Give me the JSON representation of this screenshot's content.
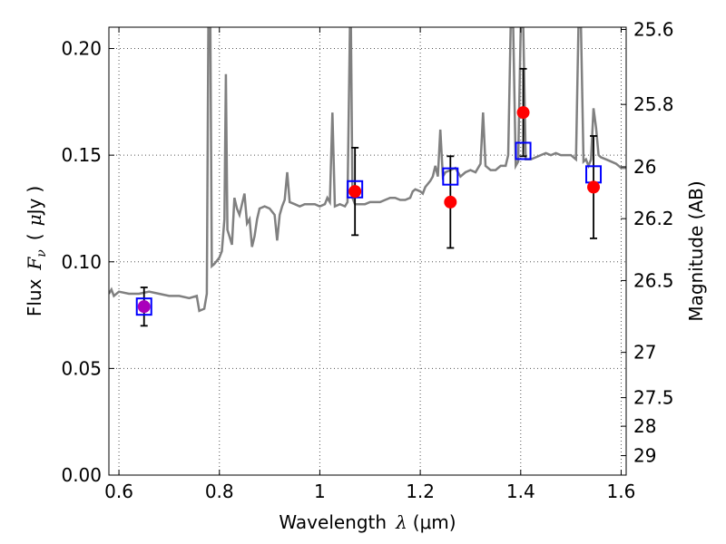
{
  "chart_data": {
    "type": "scatter",
    "xlabel": "Wavelength",
    "xlabel_symbol": "λ",
    "xlabel_unit": "(μm)",
    "ylabel": "Flux",
    "ylabel_symbol": "F",
    "ylabel_subscript": "ν",
    "ylabel_unit_open": "(",
    "ylabel_unit_symbol": "μ",
    "ylabel_unit_rest": "Jy",
    "ylabel_unit_close": ")",
    "y2label": "Magnitude (AB)",
    "xlim": [
      0.58,
      1.61
    ],
    "ylim": [
      0.0,
      0.21
    ],
    "grid": true,
    "x_ticks": [
      {
        "value": 0.6,
        "label": "0.6"
      },
      {
        "value": 0.8,
        "label": "0.8"
      },
      {
        "value": 1.0,
        "label": "1"
      },
      {
        "value": 1.2,
        "label": "1.2"
      },
      {
        "value": 1.4,
        "label": "1.4"
      },
      {
        "value": 1.6,
        "label": "1.6"
      }
    ],
    "y_ticks": [
      {
        "value": 0.0,
        "label": "0.00"
      },
      {
        "value": 0.05,
        "label": "0.05"
      },
      {
        "value": 0.1,
        "label": "0.10"
      },
      {
        "value": 0.15,
        "label": "0.15"
      },
      {
        "value": 0.2,
        "label": "0.20"
      }
    ],
    "y2_ticks": [
      {
        "mag": 25.6,
        "label": "25.6"
      },
      {
        "mag": 25.8,
        "label": "25.8"
      },
      {
        "mag": 26.0,
        "label": "26"
      },
      {
        "mag": 26.2,
        "label": "26.2"
      },
      {
        "mag": 26.5,
        "label": "26.5"
      },
      {
        "mag": 27.0,
        "label": "27"
      },
      {
        "mag": 27.5,
        "label": "27.5"
      },
      {
        "mag": 28.0,
        "label": "28"
      },
      {
        "mag": 29.0,
        "label": "29"
      }
    ],
    "series": [
      {
        "kind": "line",
        "color": "#808080",
        "points": [
          [
            0.58,
            0.085
          ],
          [
            0.585,
            0.087
          ],
          [
            0.59,
            0.084
          ],
          [
            0.6,
            0.086
          ],
          [
            0.62,
            0.085
          ],
          [
            0.64,
            0.085
          ],
          [
            0.66,
            0.086
          ],
          [
            0.68,
            0.085
          ],
          [
            0.7,
            0.084
          ],
          [
            0.72,
            0.084
          ],
          [
            0.74,
            0.083
          ],
          [
            0.755,
            0.084
          ],
          [
            0.76,
            0.077
          ],
          [
            0.77,
            0.078
          ],
          [
            0.775,
            0.085
          ],
          [
            0.778,
            0.21
          ],
          [
            0.782,
            0.21
          ],
          [
            0.785,
            0.098
          ],
          [
            0.79,
            0.099
          ],
          [
            0.8,
            0.102
          ],
          [
            0.805,
            0.105
          ],
          [
            0.81,
            0.12
          ],
          [
            0.813,
            0.188
          ],
          [
            0.816,
            0.115
          ],
          [
            0.82,
            0.112
          ],
          [
            0.825,
            0.108
          ],
          [
            0.83,
            0.13
          ],
          [
            0.835,
            0.125
          ],
          [
            0.84,
            0.122
          ],
          [
            0.85,
            0.132
          ],
          [
            0.855,
            0.118
          ],
          [
            0.86,
            0.12
          ],
          [
            0.865,
            0.107
          ],
          [
            0.87,
            0.112
          ],
          [
            0.875,
            0.12
          ],
          [
            0.88,
            0.125
          ],
          [
            0.89,
            0.126
          ],
          [
            0.9,
            0.125
          ],
          [
            0.91,
            0.122
          ],
          [
            0.915,
            0.11
          ],
          [
            0.92,
            0.122
          ],
          [
            0.925,
            0.126
          ],
          [
            0.93,
            0.129
          ],
          [
            0.935,
            0.142
          ],
          [
            0.94,
            0.128
          ],
          [
            0.95,
            0.127
          ],
          [
            0.96,
            0.126
          ],
          [
            0.97,
            0.127
          ],
          [
            0.98,
            0.127
          ],
          [
            0.99,
            0.127
          ],
          [
            1.0,
            0.126
          ],
          [
            1.01,
            0.127
          ],
          [
            1.015,
            0.13
          ],
          [
            1.02,
            0.128
          ],
          [
            1.025,
            0.17
          ],
          [
            1.03,
            0.126
          ],
          [
            1.04,
            0.127
          ],
          [
            1.05,
            0.126
          ],
          [
            1.055,
            0.128
          ],
          [
            1.06,
            0.21
          ],
          [
            1.062,
            0.21
          ],
          [
            1.065,
            0.13
          ],
          [
            1.07,
            0.127
          ],
          [
            1.08,
            0.127
          ],
          [
            1.09,
            0.127
          ],
          [
            1.1,
            0.128
          ],
          [
            1.11,
            0.128
          ],
          [
            1.12,
            0.128
          ],
          [
            1.13,
            0.129
          ],
          [
            1.14,
            0.13
          ],
          [
            1.15,
            0.13
          ],
          [
            1.16,
            0.129
          ],
          [
            1.17,
            0.129
          ],
          [
            1.18,
            0.13
          ],
          [
            1.185,
            0.133
          ],
          [
            1.19,
            0.134
          ],
          [
            1.2,
            0.133
          ],
          [
            1.205,
            0.132
          ],
          [
            1.21,
            0.135
          ],
          [
            1.22,
            0.138
          ],
          [
            1.225,
            0.14
          ],
          [
            1.23,
            0.145
          ],
          [
            1.235,
            0.14
          ],
          [
            1.24,
            0.162
          ],
          [
            1.245,
            0.14
          ],
          [
            1.25,
            0.142
          ],
          [
            1.26,
            0.143
          ],
          [
            1.27,
            0.144
          ],
          [
            1.28,
            0.14
          ],
          [
            1.29,
            0.142
          ],
          [
            1.3,
            0.143
          ],
          [
            1.31,
            0.142
          ],
          [
            1.32,
            0.146
          ],
          [
            1.325,
            0.17
          ],
          [
            1.33,
            0.145
          ],
          [
            1.34,
            0.143
          ],
          [
            1.35,
            0.143
          ],
          [
            1.36,
            0.145
          ],
          [
            1.37,
            0.145
          ],
          [
            1.375,
            0.15
          ],
          [
            1.38,
            0.21
          ],
          [
            1.385,
            0.21
          ],
          [
            1.39,
            0.145
          ],
          [
            1.395,
            0.147
          ],
          [
            1.4,
            0.21
          ],
          [
            1.405,
            0.21
          ],
          [
            1.41,
            0.148
          ],
          [
            1.42,
            0.148
          ],
          [
            1.43,
            0.149
          ],
          [
            1.44,
            0.15
          ],
          [
            1.45,
            0.151
          ],
          [
            1.46,
            0.15
          ],
          [
            1.47,
            0.151
          ],
          [
            1.48,
            0.15
          ],
          [
            1.49,
            0.15
          ],
          [
            1.5,
            0.15
          ],
          [
            1.51,
            0.148
          ],
          [
            1.515,
            0.21
          ],
          [
            1.52,
            0.21
          ],
          [
            1.525,
            0.147
          ],
          [
            1.53,
            0.148
          ],
          [
            1.535,
            0.145
          ],
          [
            1.54,
            0.148
          ],
          [
            1.545,
            0.172
          ],
          [
            1.55,
            0.163
          ],
          [
            1.555,
            0.15
          ],
          [
            1.56,
            0.149
          ],
          [
            1.57,
            0.148
          ],
          [
            1.58,
            0.147
          ],
          [
            1.59,
            0.146
          ],
          [
            1.6,
            0.144
          ],
          [
            1.61,
            0.144
          ]
        ]
      },
      {
        "kind": "squares",
        "color": "#0000ff",
        "points": [
          [
            0.65,
            0.079
          ],
          [
            1.07,
            0.134
          ],
          [
            1.26,
            0.14
          ],
          [
            1.405,
            0.152
          ],
          [
            1.545,
            0.141
          ]
        ]
      },
      {
        "kind": "points",
        "color": "#ff0000",
        "points": [
          {
            "x": 0.65,
            "y": 0.079,
            "err": 0.009,
            "color": "#aa00bb"
          },
          {
            "x": 1.07,
            "y": 0.133,
            "err": 0.0205
          },
          {
            "x": 1.26,
            "y": 0.128,
            "err": 0.0215
          },
          {
            "x": 1.405,
            "y": 0.17,
            "err": 0.0205
          },
          {
            "x": 1.545,
            "y": 0.135,
            "err": 0.024
          }
        ]
      }
    ]
  }
}
